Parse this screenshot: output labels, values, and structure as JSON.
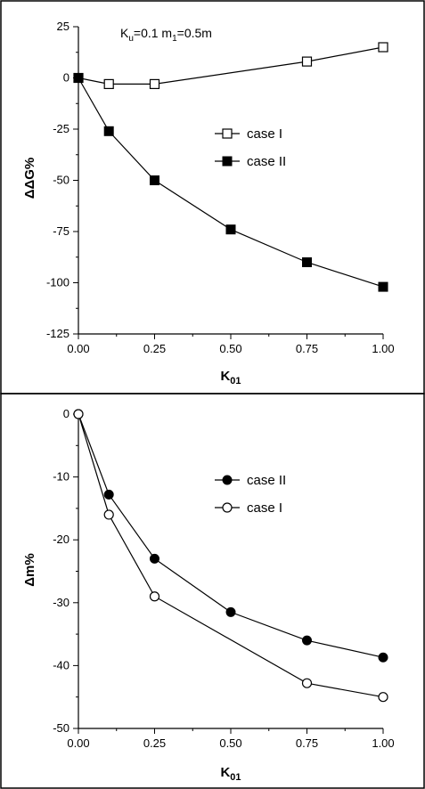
{
  "chart_data": [
    {
      "type": "line",
      "annotation": "K_u=0.1 m_1=0.5m",
      "xlabel": "K01",
      "ylabel": "ΔΔG%",
      "xlim": [
        0,
        1
      ],
      "ylim": [
        -125,
        25
      ],
      "xticks": [
        "0.00",
        "0.25",
        "0.50",
        "0.75",
        "1.00"
      ],
      "xtick_values": [
        0,
        0.25,
        0.5,
        0.75,
        1.0
      ],
      "yticks": [
        "25",
        "0",
        "-25",
        "-50",
        "-75",
        "-100",
        "-125"
      ],
      "ytick_values": [
        25,
        0,
        -25,
        -50,
        -75,
        -100,
        -125
      ],
      "legend_position": "center-right",
      "grid": false,
      "series": [
        {
          "name": "case I",
          "marker": "open-square",
          "x": [
            0,
            0.1,
            0.25,
            0.75,
            1.0
          ],
          "y": [
            0,
            -3,
            -3,
            8,
            15
          ]
        },
        {
          "name": "case II",
          "marker": "filled-square",
          "x": [
            0,
            0.1,
            0.25,
            0.5,
            0.75,
            1.0
          ],
          "y": [
            0,
            -26,
            -50,
            -74,
            -90,
            -102
          ]
        }
      ]
    },
    {
      "type": "line",
      "xlabel": "K01",
      "ylabel": "Δm%",
      "xlim": [
        0,
        1
      ],
      "ylim": [
        -50,
        0
      ],
      "xticks": [
        "0.00",
        "0.25",
        "0.50",
        "0.75",
        "1.00"
      ],
      "xtick_values": [
        0,
        0.25,
        0.5,
        0.75,
        1.0
      ],
      "yticks": [
        "0",
        "-10",
        "-20",
        "-30",
        "-40",
        "-50"
      ],
      "ytick_values": [
        0,
        -10,
        -20,
        -30,
        -40,
        -50
      ],
      "legend_position": "center-right",
      "grid": false,
      "series": [
        {
          "name": "case II",
          "marker": "filled-circle",
          "x": [
            0,
            0.1,
            0.25,
            0.5,
            0.75,
            1.0
          ],
          "y": [
            0,
            -12.8,
            -23,
            -31.5,
            -36,
            -38.7
          ]
        },
        {
          "name": "case I",
          "marker": "open-circle",
          "x": [
            0,
            0.1,
            0.25,
            0.75,
            1.0
          ],
          "y": [
            0,
            -16,
            -29,
            -42.8,
            -45
          ]
        }
      ]
    }
  ]
}
